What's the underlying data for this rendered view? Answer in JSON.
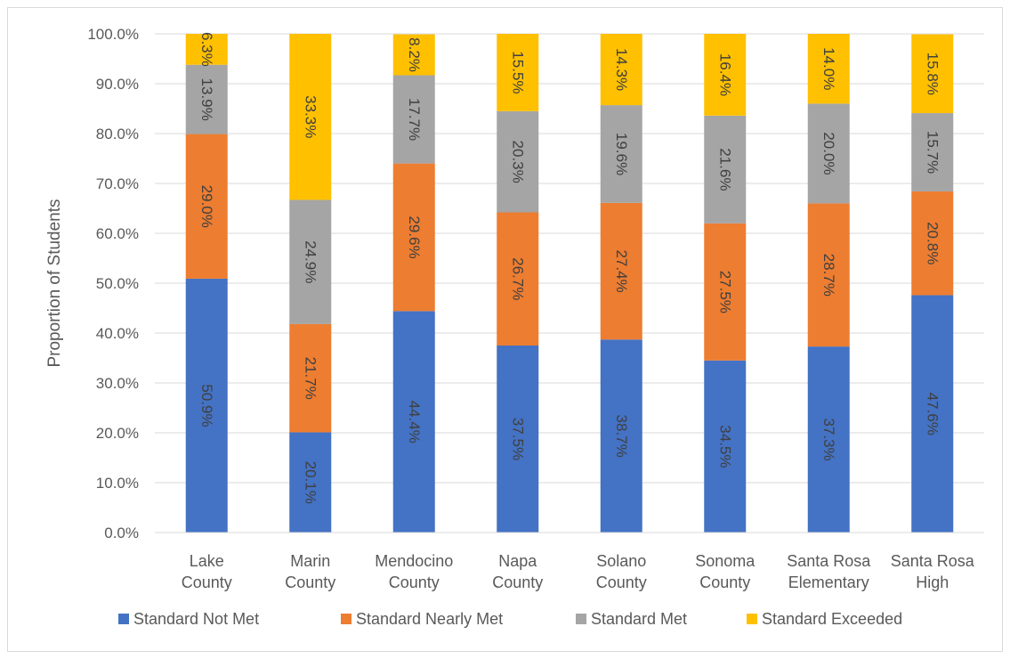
{
  "chart_data": {
    "type": "bar",
    "stacked": true,
    "title": "",
    "xlabel": "",
    "ylabel": "Proportion of Students",
    "ylim": [
      0,
      100
    ],
    "yticks": [
      "0.0%",
      "10.0%",
      "20.0%",
      "30.0%",
      "40.0%",
      "50.0%",
      "60.0%",
      "70.0%",
      "80.0%",
      "90.0%",
      "100.0%"
    ],
    "grid": true,
    "legend_position": "bottom",
    "categories": [
      [
        "Lake",
        "County"
      ],
      [
        "Marin",
        "County"
      ],
      [
        "Mendocino",
        "County"
      ],
      [
        "Napa",
        "County"
      ],
      [
        "Solano",
        "County"
      ],
      [
        "Sonoma",
        "County"
      ],
      [
        "Santa Rosa",
        "Elementary"
      ],
      [
        "Santa Rosa",
        "High"
      ]
    ],
    "series": [
      {
        "name": "Standard Not Met",
        "color": "#4472C4",
        "values": [
          50.9,
          20.1,
          44.4,
          37.5,
          38.7,
          34.5,
          37.3,
          47.6
        ],
        "labels": [
          "50.9%",
          "20.1%",
          "44.4%",
          "37.5%",
          "38.7%",
          "34.5%",
          "37.3%",
          "47.6%"
        ]
      },
      {
        "name": "Standard Nearly Met",
        "color": "#ED7D31",
        "values": [
          29.0,
          21.7,
          29.6,
          26.7,
          27.4,
          27.5,
          28.7,
          20.8
        ],
        "labels": [
          "29.0%",
          "21.7%",
          "29.6%",
          "26.7%",
          "27.4%",
          "27.5%",
          "28.7%",
          "20.8%"
        ]
      },
      {
        "name": "Standard Met",
        "color": "#A5A5A5",
        "values": [
          13.9,
          24.9,
          17.7,
          20.3,
          19.6,
          21.6,
          20.0,
          15.7
        ],
        "labels": [
          "13.9%",
          "24.9%",
          "17.7%",
          "20.3%",
          "19.6%",
          "21.6%",
          "20.0%",
          "15.7%"
        ]
      },
      {
        "name": "Standard Exceeded",
        "color": "#FFC000",
        "values": [
          6.3,
          33.3,
          8.2,
          15.5,
          14.3,
          16.4,
          14.0,
          15.8
        ],
        "labels": [
          "6.3%",
          "33.3%",
          "8.2%",
          "15.5%",
          "14.3%",
          "16.4%",
          "14.0%",
          "15.8%"
        ]
      }
    ]
  }
}
